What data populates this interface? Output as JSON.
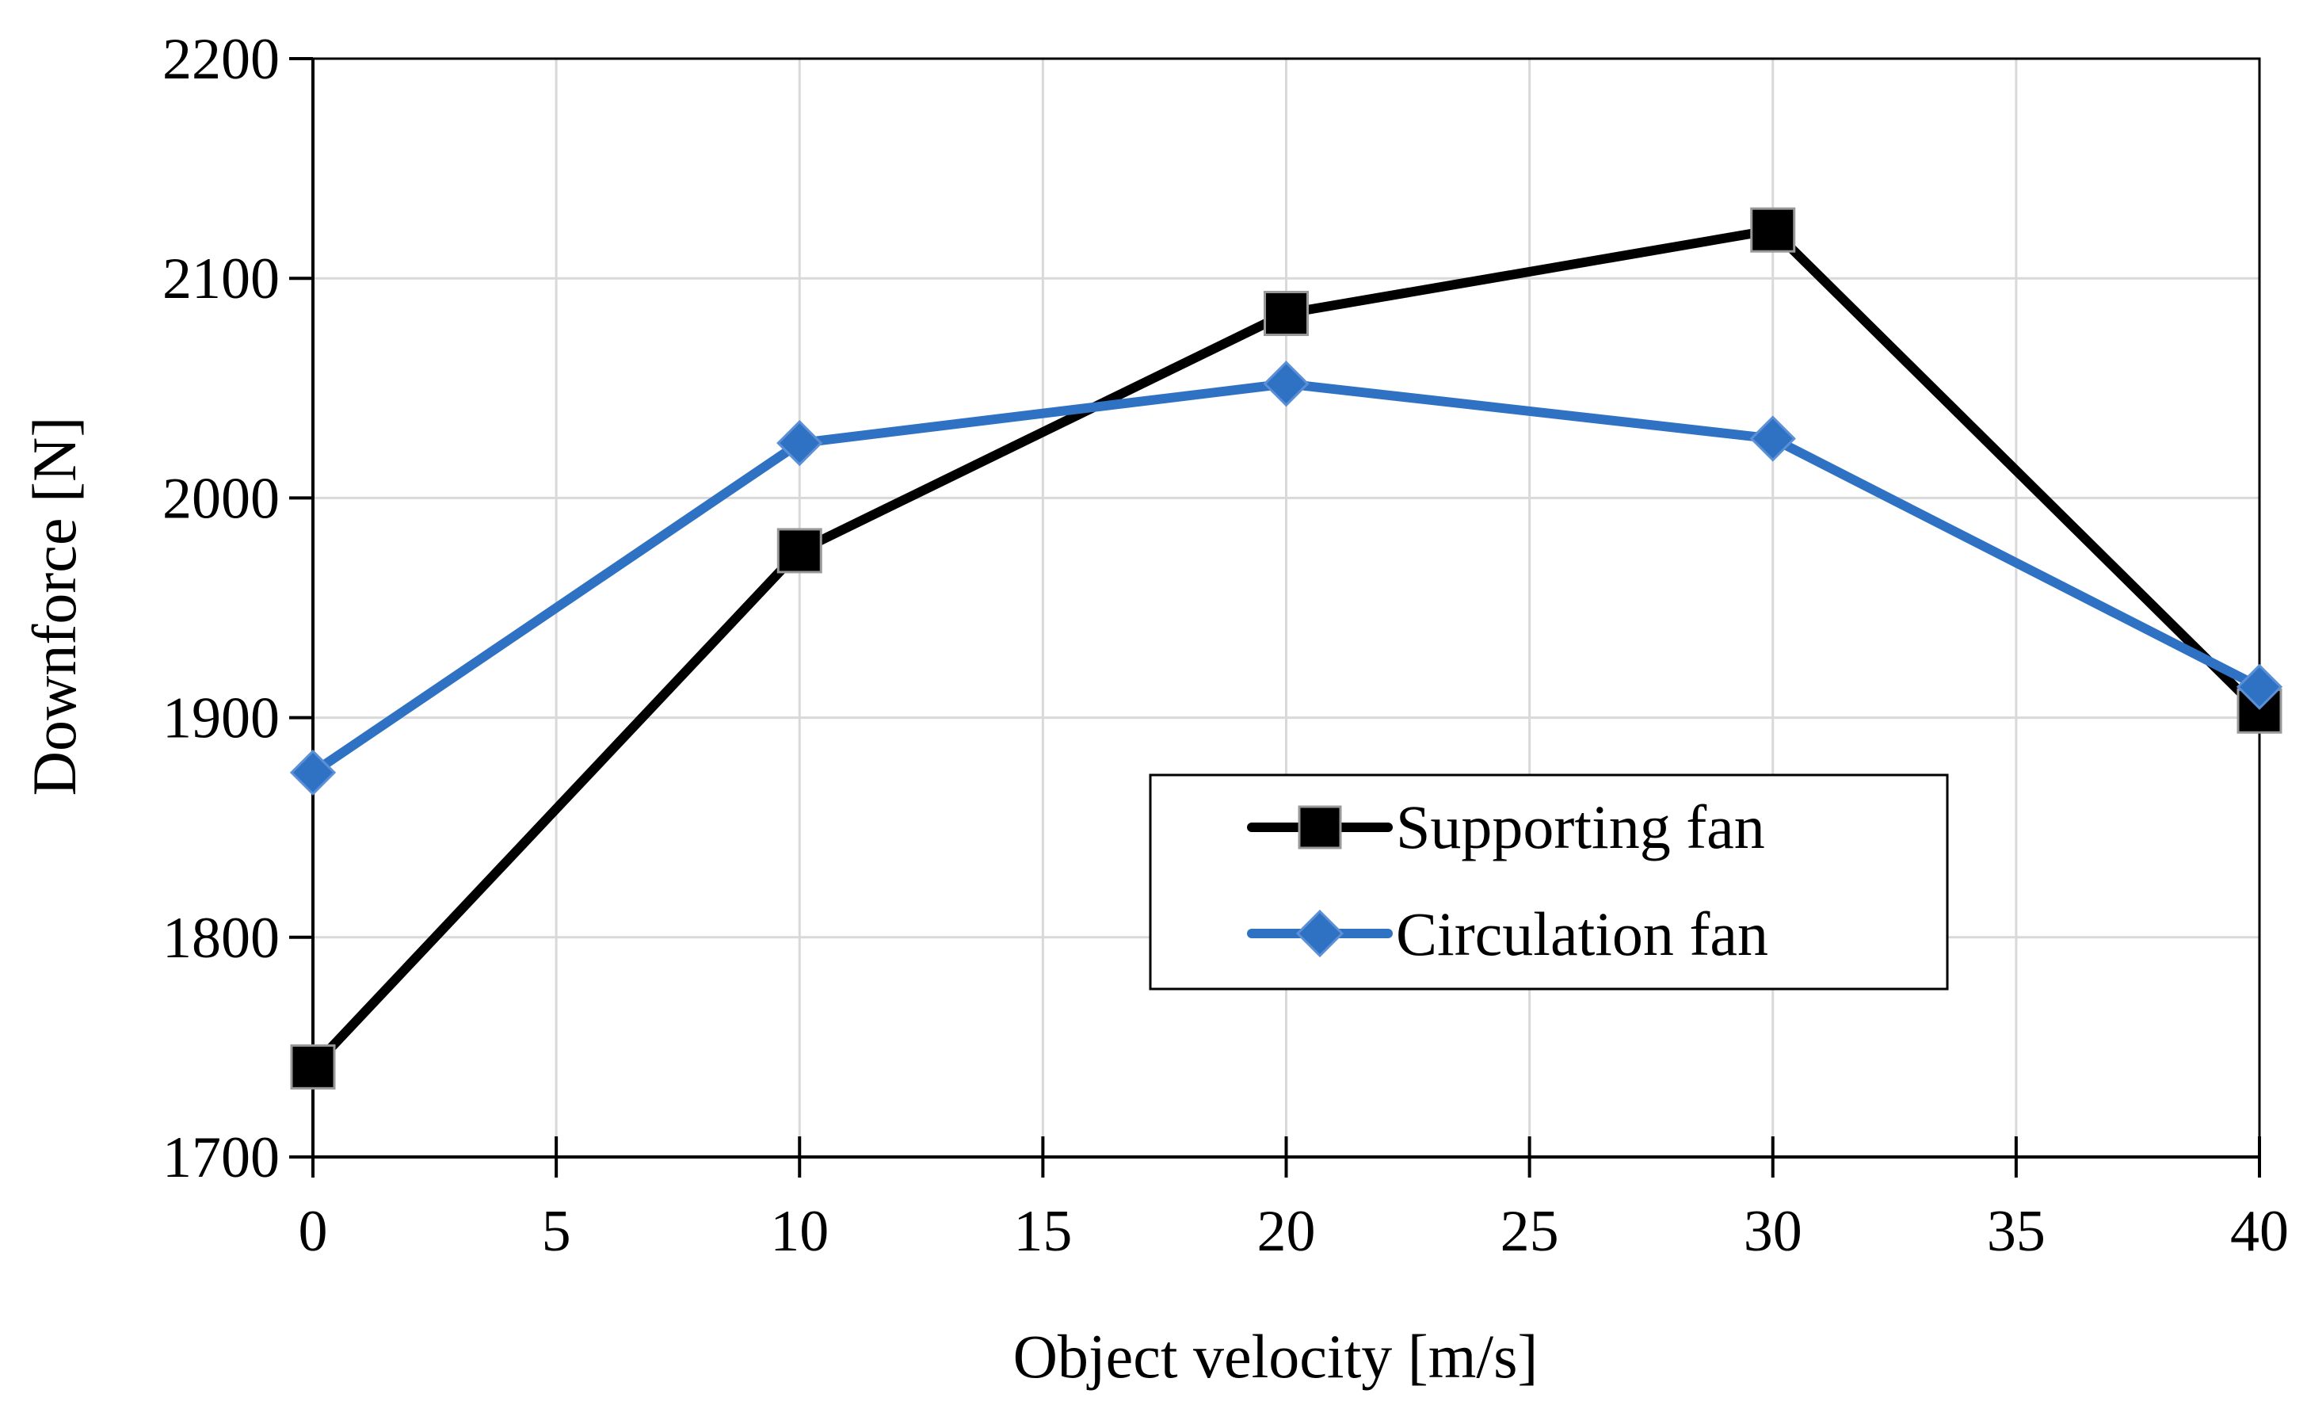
{
  "chart_data": {
    "type": "line",
    "title": "",
    "xlabel": "Object velocity [m/s]",
    "ylabel": "Downforce [N]",
    "xlim": [
      0,
      40
    ],
    "ylim": [
      1700,
      2200
    ],
    "xticks": [
      0,
      5,
      10,
      15,
      20,
      25,
      30,
      35,
      40
    ],
    "yticks": [
      1700,
      1800,
      1900,
      2000,
      2100,
      2200
    ],
    "grid": true,
    "legend_position": "lower-right-inside",
    "series": [
      {
        "name": "Supporting fan",
        "color": "#000000",
        "marker": "square",
        "x": [
          0,
          10,
          20,
          30,
          40
        ],
        "values": [
          1741,
          1976,
          2084,
          2122,
          1903
        ]
      },
      {
        "name": "Circulation fan",
        "color": "#2f72c4",
        "marker": "diamond",
        "x": [
          0,
          10,
          20,
          30,
          40
        ],
        "values": [
          1875,
          2025,
          2052,
          2027,
          1914
        ]
      }
    ]
  }
}
